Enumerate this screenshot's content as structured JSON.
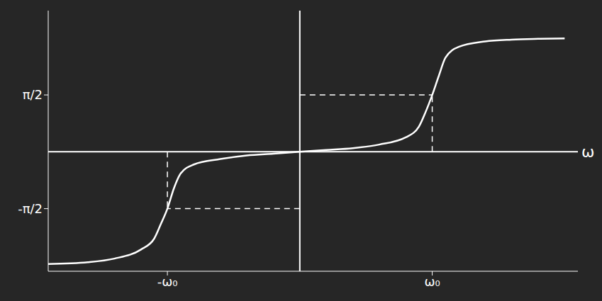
{
  "chart_data": {
    "type": "line",
    "xlabel": "ω",
    "x": [
      -1.9,
      -1.6,
      -1.4,
      -1.2,
      -1.1,
      -1.05,
      -1.0,
      -0.95,
      -0.9,
      -0.8,
      -0.6,
      -0.4,
      -0.2,
      0,
      0.2,
      0.4,
      0.6,
      0.8,
      0.9,
      0.95,
      1.0,
      1.05,
      1.1,
      1.2,
      1.4,
      1.6,
      1.8,
      2.0
    ],
    "values": [
      -3.1,
      -3.05,
      -2.95,
      -2.7,
      -2.4,
      -2.0,
      -1.57,
      -1.0,
      -0.6,
      -0.35,
      -0.2,
      -0.1,
      -0.05,
      0,
      0.05,
      0.1,
      0.2,
      0.4,
      0.7,
      1.1,
      1.57,
      2.1,
      2.6,
      2.9,
      3.05,
      3.1,
      3.12,
      3.13
    ],
    "color": "#ffffff",
    "xlim": [
      -1.9,
      2.1
    ],
    "ylim": [
      -3.3,
      3.9
    ],
    "xticks": [
      {
        "value": -1,
        "label": "-ω₀"
      },
      {
        "value": 1,
        "label": "ω₀"
      }
    ],
    "yticks": [
      {
        "value": -1.5708,
        "label": "-π/2"
      },
      {
        "value": 1.5708,
        "label": "π/2"
      }
    ],
    "grid": false
  }
}
